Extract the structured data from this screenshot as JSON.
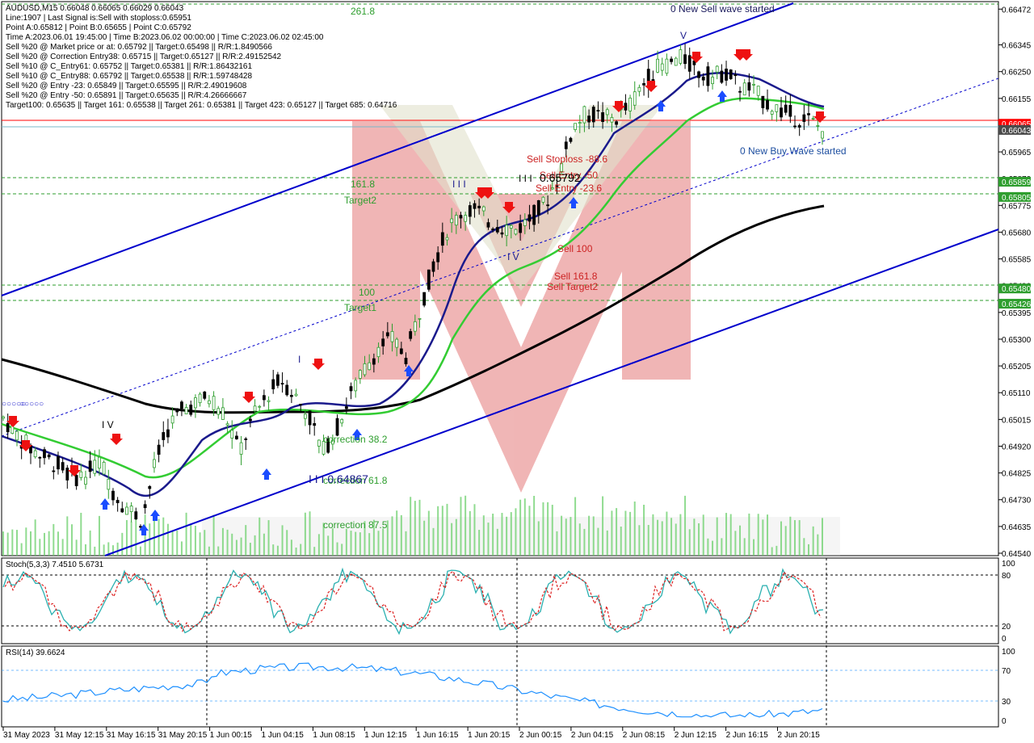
{
  "header_lines": [
    "AUDUSD,M15  0.66048 0.66065 0.66029 0.66043",
    "Line:1907 | Last Signal is:Sell with stoploss:0.65951",
    "Point A:0.65812 | Point B:0.65655 | Point C:0.65792",
    "Time A:2023.06.01 19:45:00 | Time B:2023.06.02 00:00:00 | Time C:2023.06.02 02:45:00",
    "Sell %20 @ Market price or at: 0.65792 || Target:0.65498 || R/R:1.8490566",
    "Sell %20 @ Correction Entry38: 0.65715 || Target:0.65127 || R/R:2.49152542",
    "Sell %10 @ C_Entry61: 0.65752 || Target:0.65381 || R/R:1.86432161",
    "Sell %10 @ C_Entry88: 0.65792 || Target:0.65538 || R/R:1.59748428",
    "Sell %20 @ Entry -23: 0.65849 || Target:0.65595 || R/R:2.49019608",
    "Sell %20 @ Entry -50: 0.65891 || Target:0.65635 || R/R:4.26666667",
    "Target100: 0.65635 || Target 161: 0.65538 || Target 261: 0.65381 || Target 423: 0.65127 || Target 685: 0.64716"
  ],
  "price_axis_labels": [
    "0.66472",
    "0.66345",
    "0.66250",
    "0.66155",
    "0.66060",
    "0.65965",
    "0.65870",
    "0.65775",
    "0.65680",
    "0.65585",
    "0.65490",
    "0.65395",
    "0.65300",
    "0.65205",
    "0.65110",
    "0.65015",
    "0.64920",
    "0.64825",
    "0.64730",
    "0.64635",
    "0.64540"
  ],
  "price_tags": [
    {
      "text": "0.66065",
      "color": "#ff0000",
      "y": 0.66065
    },
    {
      "text": "0.66043",
      "color": "#4a4a4a",
      "y": 0.66043
    },
    {
      "text": "0.65859",
      "color": "#2e9e2e",
      "y": 0.65859
    },
    {
      "text": "0.65805",
      "color": "#2e9e2e",
      "y": 0.65805
    },
    {
      "text": "0.65480",
      "color": "#2e9e2e",
      "y": 0.6548
    },
    {
      "text": "0.65426",
      "color": "#2e9e2e",
      "y": 0.65426
    }
  ],
  "time_axis_labels": [
    "31 May 2023",
    "31 May 12:15",
    "31 May 16:15",
    "31 May 20:15",
    "1 Jun 00:15",
    "1 Jun 04:15",
    "1 Jun 08:15",
    "1 Jun 12:15",
    "1 Jun 16:15",
    "1 Jun 20:15",
    "2 Jun 00:15",
    "2 Jun 04:15",
    "2 Jun 08:15",
    "2 Jun 12:15",
    "2 Jun 16:15",
    "2 Jun 20:15"
  ],
  "annotations": {
    "new_sell_wave": "0 New Sell wave started",
    "new_buy_wave": "0 New Buy Wave started",
    "fib_261": "261.8",
    "fib_161": "161.8",
    "target2": "Target2",
    "fib_100": "100",
    "target1": "Target1",
    "sell_stoploss": "Sell Stoploss -88.6",
    "sell_entry_50": "Sell Entry -50",
    "sell_entry_23": "Sell Entry -23.6",
    "price_65792": "0.65792",
    "sell_100": "Sell 100",
    "sell_1618": "Sell 161.8",
    "sell_target2": "Sell Target2",
    "correction_382": "correction 38.2",
    "correction_618": "correction 61.8",
    "correction_875": "correction 87.5",
    "low_price": "0.64867",
    "wave_iii": "I I I",
    "wave_iv": "I V",
    "wave_v": "V",
    "wave_i": "I",
    "wave_iv_left": "I V"
  },
  "stoch": {
    "label": "Stoch(5,3,3) 7.4510 5.6731",
    "levels": [
      "100",
      "80",
      "20",
      "0"
    ]
  },
  "rsi": {
    "label": "RSI(14) 39.6624",
    "levels": [
      "100",
      "70",
      "30",
      "0"
    ]
  },
  "colors": {
    "bull": "#2e9e2e",
    "bear": "#ff0000",
    "channel": "#0000cc",
    "ma_fast": "#1a1a8c",
    "ma_mid": "#33cc33",
    "ma_slow": "#000000",
    "stoch": "#2ab0b0",
    "rsi": "#1e90ff",
    "grid": "#c0c0c0",
    "watermark": "#e05555"
  },
  "chart_data": {
    "type": "line",
    "title": "AUDUSD,M15",
    "ylim": [
      0.6454,
      0.6649
    ],
    "series": [
      {
        "name": "price",
        "values": [
          0.6502,
          0.6496,
          0.6491,
          0.6488,
          0.6485,
          0.6481,
          0.6482,
          0.6487,
          0.6475,
          0.647,
          0.6466,
          0.6487,
          0.65,
          0.6505,
          0.6508,
          0.6509,
          0.6503,
          0.649,
          0.6502,
          0.651,
          0.6516,
          0.651,
          0.6503,
          0.649,
          0.6498,
          0.651,
          0.6519,
          0.6527,
          0.653,
          0.6524,
          0.654,
          0.6557,
          0.6569,
          0.6575,
          0.6576,
          0.6572,
          0.657,
          0.6569,
          0.6573,
          0.6578,
          0.6588,
          0.6605,
          0.661,
          0.6609,
          0.6608,
          0.6612,
          0.662,
          0.6626,
          0.6628,
          0.663,
          0.6625,
          0.6623,
          0.6625,
          0.662,
          0.6618,
          0.6614,
          0.6611,
          0.6609,
          0.6608,
          0.66043
        ]
      }
    ]
  }
}
